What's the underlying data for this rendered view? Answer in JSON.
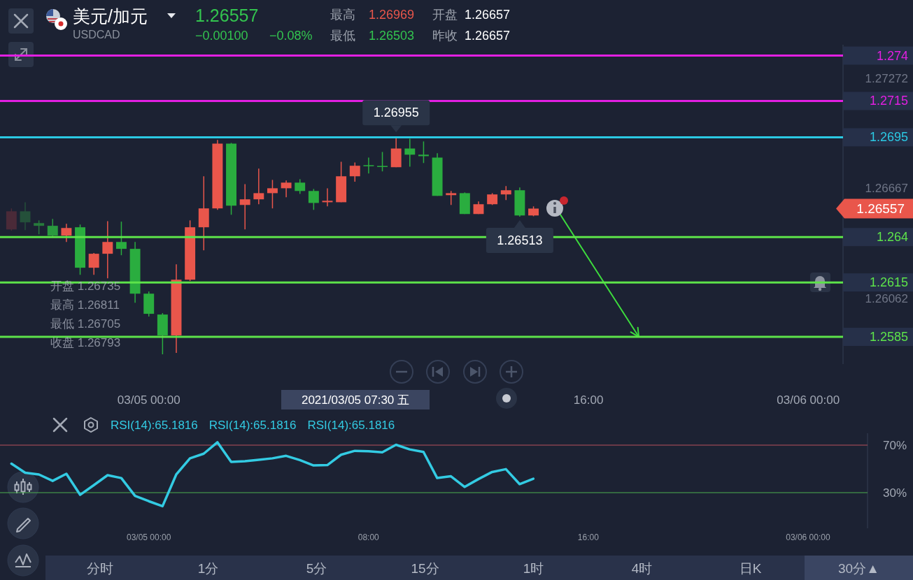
{
  "chart_data": [
    {
      "type": "other",
      "title": "美元/加元",
      "subtitle": "USDCAD",
      "annotations": [
        "1.26557",
        "−0.00100",
        "−0.08%",
        "最高",
        "1.26969",
        "开盘",
        "1.26657",
        "最低",
        "1.26503",
        "昨收",
        "1.26657"
      ]
    },
    {
      "type": "candlestick",
      "x": [
        "2021-03-04T19:00",
        "2021-03-04T19:30",
        "2021-03-04T20:00",
        "2021-03-04T20:30",
        "2021-03-04T21:00",
        "2021-03-04T21:30",
        "2021-03-04T22:00",
        "2021-03-04T22:30",
        "2021-03-04T23:00",
        "2021-03-04T23:30",
        "2021-03-05T00:00",
        "2021-03-05T00:30",
        "2021-03-05T01:00",
        "2021-03-05T01:30",
        "2021-03-05T02:00",
        "2021-03-05T02:30",
        "2021-03-05T03:00",
        "2021-03-05T03:30",
        "2021-03-05T04:00",
        "2021-03-05T04:30",
        "2021-03-05T05:00",
        "2021-03-05T05:30",
        "2021-03-05T06:00",
        "2021-03-05T06:30",
        "2021-03-05T07:00",
        "2021-03-05T07:30",
        "2021-03-05T08:00",
        "2021-03-05T08:30",
        "2021-03-05T09:00",
        "2021-03-05T09:30",
        "2021-03-05T10:00",
        "2021-03-05T10:30",
        "2021-03-05T11:00",
        "2021-03-05T11:30",
        "2021-03-05T12:00",
        "2021-03-05T12:30",
        "2021-03-05T13:00",
        "2021-03-05T13:30",
        "2021-03-05T14:00"
      ],
      "ohlc": [
        [
          1.26442,
          1.26558,
          1.26435,
          1.26542
        ],
        [
          1.26542,
          1.26592,
          1.26438,
          1.26481
        ],
        [
          1.26477,
          1.26492,
          1.26415,
          1.26462
        ],
        [
          1.26462,
          1.265,
          1.26404,
          1.26408
        ],
        [
          1.26408,
          1.26473,
          1.26373,
          1.2645
        ],
        [
          1.26454,
          1.26469,
          1.26192,
          1.26231
        ],
        [
          1.26231,
          1.26312,
          1.26192,
          1.26308
        ],
        [
          1.26308,
          1.26488,
          1.26173,
          1.26373
        ],
        [
          1.26373,
          1.26485,
          1.263,
          1.26335
        ],
        [
          1.26335,
          1.26373,
          1.26038,
          1.26088
        ],
        [
          1.26088,
          1.261,
          1.25962,
          1.25977
        ],
        [
          1.25973,
          1.25981,
          1.25754,
          1.25858
        ],
        [
          1.25858,
          1.2625,
          1.25762,
          1.26165
        ],
        [
          1.26165,
          1.26492,
          1.26158,
          1.26454
        ],
        [
          1.26454,
          1.26735,
          1.26327,
          1.26558
        ],
        [
          1.26558,
          1.26935,
          1.2655,
          1.26915
        ],
        [
          1.26915,
          1.26919,
          1.26523,
          1.26573
        ],
        [
          1.26577,
          1.26692,
          1.26442,
          1.26608
        ],
        [
          1.26608,
          1.26777,
          1.26581,
          1.26642
        ],
        [
          1.26642,
          1.26715,
          1.26558,
          1.26669
        ],
        [
          1.26669,
          1.26712,
          1.26619,
          1.267
        ],
        [
          1.267,
          1.26719,
          1.26638,
          1.26654
        ],
        [
          1.26654,
          1.26665,
          1.2655,
          1.26588
        ],
        [
          1.26592,
          1.26669,
          1.26569,
          1.266
        ],
        [
          1.26592,
          1.26815,
          1.26592,
          1.26735
        ],
        [
          1.26735,
          1.26811,
          1.26705,
          1.26793
        ],
        [
          1.26796,
          1.26838,
          1.2675,
          1.26792
        ],
        [
          1.26792,
          1.26869,
          1.26762,
          1.26788
        ],
        [
          1.26785,
          1.26955,
          1.26785,
          1.26888
        ],
        [
          1.26888,
          1.26942,
          1.26788,
          1.26854
        ],
        [
          1.26854,
          1.26927,
          1.26808,
          1.26846
        ],
        [
          1.26838,
          1.26862,
          1.26627,
          1.26627
        ],
        [
          1.26631,
          1.26654,
          1.26577,
          1.26642
        ],
        [
          1.26642,
          1.26646,
          1.26527,
          1.26527
        ],
        [
          1.26527,
          1.26596,
          1.26527,
          1.26581
        ],
        [
          1.26581,
          1.26642,
          1.26577,
          1.26635
        ],
        [
          1.26635,
          1.26681,
          1.26604,
          1.26658
        ],
        [
          1.26658,
          1.26673,
          1.26513,
          1.26519
        ],
        [
          1.26519,
          1.26569,
          1.26515,
          1.26557
        ]
      ],
      "colors": [
        "#4a2a38",
        "#24503a",
        "#277a3c",
        "#2a9a3f",
        "#e9564b",
        "#2aad3f",
        "#e9564b",
        "#e9564b",
        "#2aad3f",
        "#2aad3f",
        "#2aad3f",
        "#2aad3f",
        "#e9564b",
        "#e9564b",
        "#e9564b",
        "#e9564b",
        "#2aad3f",
        "#e9564b",
        "#e9564b",
        "#e9564b",
        "#e9564b",
        "#2aad3f",
        "#2aad3f",
        "#e9564b",
        "#e9564b",
        "#e9564b",
        "#2aad3f",
        "#2aad3f",
        "#e9564b",
        "#2aad3f",
        "#2aad3f",
        "#2aad3f",
        "#e9564b",
        "#2aad3f",
        "#e9564b",
        "#e9564b",
        "#e9564b",
        "#2aad3f",
        "#e9564b"
      ],
      "series": [
        {
          "type": "line",
          "x": [
            "2021-03-05T14:50",
            "2021-03-05T17:50"
          ],
          "values": [
            1.26558,
            1.2585
          ],
          "color": "#3ddc3d"
        }
      ],
      "xlim": [
        "2021-03-04T18:35",
        "2021-03-06T01:16"
      ],
      "xticks": [
        {
          "value": "2021-03-05T00:00",
          "label": "03/05 00:00"
        },
        {
          "value": "2021-03-05T16:00",
          "label": "16:00"
        },
        {
          "value": "2021-03-06T00:00",
          "label": "03/06 00:00"
        }
      ],
      "ylim": [
        1.257,
        1.2746
      ],
      "yticks": [
        1.26062,
        1.26667,
        1.27272
      ],
      "ref_lines": [
        {
          "axis": "y",
          "value": 1.274,
          "label": "1.274",
          "color": "#e21fe2"
        },
        {
          "axis": "y",
          "value": 1.2715,
          "label": "1.2715",
          "color": "#e21fe2"
        },
        {
          "axis": "y",
          "value": 1.2695,
          "label": "1.2695",
          "color": "#2bc9e3"
        },
        {
          "axis": "y",
          "value": 1.264,
          "label": "1.264",
          "color": "#5de34a"
        },
        {
          "axis": "y",
          "value": 1.2615,
          "label": "1.2615",
          "color": "#5de34a"
        },
        {
          "axis": "y",
          "value": 1.2585,
          "label": "1.2585",
          "color": "#5de34a"
        }
      ],
      "annotations": [
        {
          "text": "1.26955",
          "x": "2021-03-05T09:00",
          "y": 1.26955
        },
        {
          "text": "1.26513",
          "x": "2021-03-05T13:30",
          "y": 1.26513
        },
        "2021/03/05 07:30 五",
        "1.26557",
        "开盘 1.26735",
        "最高 1.26811",
        "最低 1.26705",
        "收盘 1.26793"
      ]
    },
    {
      "type": "line",
      "x": [
        "2021-03-04T19:00",
        "2021-03-04T19:30",
        "2021-03-04T20:00",
        "2021-03-04T20:30",
        "2021-03-04T21:00",
        "2021-03-04T21:30",
        "2021-03-04T22:00",
        "2021-03-04T22:30",
        "2021-03-04T23:00",
        "2021-03-04T23:30",
        "2021-03-05T00:00",
        "2021-03-05T00:30",
        "2021-03-05T01:00",
        "2021-03-05T01:30",
        "2021-03-05T02:00",
        "2021-03-05T02:30",
        "2021-03-05T03:00",
        "2021-03-05T03:30",
        "2021-03-05T04:00",
        "2021-03-05T04:30",
        "2021-03-05T05:00",
        "2021-03-05T05:30",
        "2021-03-05T06:00",
        "2021-03-05T06:30",
        "2021-03-05T07:00",
        "2021-03-05T07:30",
        "2021-03-05T08:00",
        "2021-03-05T08:30",
        "2021-03-05T09:00",
        "2021-03-05T09:30",
        "2021-03-05T10:00",
        "2021-03-05T10:30",
        "2021-03-05T11:00",
        "2021-03-05T11:30",
        "2021-03-05T12:00",
        "2021-03-05T12:30",
        "2021-03-05T13:00",
        "2021-03-05T13:30",
        "2021-03-05T14:00"
      ],
      "series": [
        {
          "color": "#33cbe3",
          "values": [
            54.4,
            46.8,
            45.3,
            39.9,
            45.9,
            28.2,
            36.3,
            44.7,
            42.3,
            27.3,
            22.8,
            18.6,
            45.3,
            58.9,
            62.8,
            72.4,
            55.9,
            56.5,
            57.7,
            58.9,
            61.0,
            57.4,
            52.9,
            53.2,
            61.9,
            65.2,
            64.9,
            64.0,
            70.3,
            66.4,
            64.3,
            42.3,
            43.8,
            34.8,
            41.4,
            47.4,
            49.8,
            37.2,
            41.7
          ]
        }
      ],
      "xlim": [
        "2021-03-04T18:35",
        "2021-03-06T02:10"
      ],
      "xticks": [
        {
          "value": "2021-03-05T00:00",
          "label": "03/05 00:00"
        },
        {
          "value": "2021-03-05T08:00",
          "label": "08:00"
        },
        {
          "value": "2021-03-05T16:00",
          "label": "16:00"
        },
        {
          "value": "2021-03-06T00:00",
          "label": "03/06 00:00"
        }
      ],
      "ylim": [
        0,
        80
      ],
      "yticks": [
        {
          "value": 70,
          "label": "70%"
        },
        {
          "value": 30,
          "label": "30%"
        }
      ],
      "ref_lines": [
        {
          "axis": "y",
          "value": 70,
          "color": "#b9505c"
        },
        {
          "axis": "y",
          "value": 30,
          "color": "#4caf50"
        }
      ],
      "annotations": [
        "RSI(14):65.1816",
        "RSI(14):65.1816",
        "RSI(14):65.1816"
      ]
    },
    {
      "type": "other",
      "annotations": [
        "分时",
        "1分",
        "5分",
        "15分",
        "1时",
        "4时",
        "日K",
        "30分▲"
      ]
    }
  ]
}
